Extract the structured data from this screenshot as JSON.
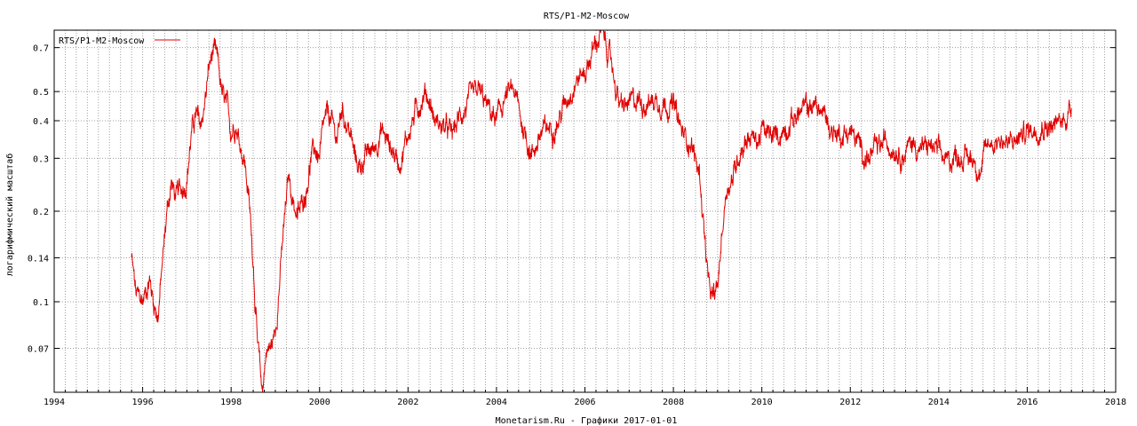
{
  "chart_data": {
    "type": "line",
    "title": "RTS/P1-M2-Moscow",
    "xlabel": "Monetarism.Ru - Графики  2017-01-01",
    "ylabel": "логарифмический масштаб",
    "y_scale": "log",
    "xlim": [
      1994,
      2018
    ],
    "ylim": [
      0.05,
      0.8
    ],
    "x_ticks": [
      "1994",
      "1996",
      "1998",
      "2000",
      "2002",
      "2004",
      "2006",
      "2008",
      "2010",
      "2012",
      "2014",
      "2016",
      "2018"
    ],
    "y_ticks": [
      "0.07",
      "0.1",
      "0.14",
      "0.2",
      "0.3",
      "0.4",
      "0.5",
      "0.7"
    ],
    "grid": true,
    "legend": {
      "position": "top-left",
      "entries": [
        "RTS/P1-M2-Moscow"
      ]
    },
    "series": [
      {
        "name": "RTS/P1-M2-Moscow",
        "color": "#e00000",
        "x": [
          1995.75,
          1995.85,
          1996.0,
          1996.15,
          1996.25,
          1996.35,
          1996.45,
          1996.55,
          1996.65,
          1996.75,
          1996.9,
          1997.0,
          1997.1,
          1997.2,
          1997.3,
          1997.4,
          1997.5,
          1997.6,
          1997.7,
          1997.8,
          1997.9,
          1998.0,
          1998.1,
          1998.2,
          1998.3,
          1998.4,
          1998.5,
          1998.6,
          1998.7,
          1998.8,
          1998.9,
          1999.0,
          1999.1,
          1999.2,
          1999.3,
          1999.4,
          1999.5,
          1999.6,
          1999.7,
          1999.8,
          1999.9,
          2000.0,
          2000.1,
          2000.2,
          2000.3,
          2000.4,
          2000.5,
          2000.6,
          2000.7,
          2000.8,
          2000.9,
          2001.0,
          2001.2,
          2001.4,
          2001.6,
          2001.8,
          2002.0,
          2002.2,
          2002.4,
          2002.5,
          2002.6,
          2002.8,
          2003.0,
          2003.2,
          2003.4,
          2003.6,
          2003.8,
          2004.0,
          2004.2,
          2004.4,
          2004.6,
          2004.8,
          2005.0,
          2005.2,
          2005.4,
          2005.6,
          2005.8,
          2006.0,
          2006.2,
          2006.35,
          2006.45,
          2006.6,
          2006.8,
          2007.0,
          2007.2,
          2007.4,
          2007.6,
          2007.8,
          2008.0,
          2008.2,
          2008.4,
          2008.6,
          2008.7,
          2008.8,
          2008.9,
          2009.0,
          2009.1,
          2009.2,
          2009.35,
          2009.5,
          2009.7,
          2009.9,
          2010.0,
          2010.2,
          2010.4,
          2010.6,
          2010.8,
          2011.0,
          2011.2,
          2011.4,
          2011.6,
          2011.8,
          2012.0,
          2012.2,
          2012.4,
          2012.6,
          2012.8,
          2013.0,
          2013.2,
          2013.4,
          2013.6,
          2013.8,
          2014.0,
          2014.2,
          2014.4,
          2014.6,
          2014.8,
          2014.95,
          2015.1,
          2015.2,
          2015.4,
          2015.6,
          2015.8,
          2016.0,
          2016.2,
          2016.4,
          2016.6,
          2016.8,
          2017.0
        ],
        "values": [
          0.14,
          0.105,
          0.1,
          0.12,
          0.1,
          0.09,
          0.135,
          0.2,
          0.25,
          0.22,
          0.24,
          0.26,
          0.36,
          0.42,
          0.38,
          0.45,
          0.6,
          0.68,
          0.62,
          0.48,
          0.44,
          0.37,
          0.4,
          0.34,
          0.3,
          0.22,
          0.14,
          0.07,
          0.05,
          0.07,
          0.07,
          0.08,
          0.12,
          0.18,
          0.26,
          0.22,
          0.19,
          0.21,
          0.24,
          0.3,
          0.32,
          0.3,
          0.38,
          0.42,
          0.38,
          0.35,
          0.44,
          0.4,
          0.36,
          0.3,
          0.28,
          0.3,
          0.32,
          0.37,
          0.33,
          0.29,
          0.36,
          0.44,
          0.5,
          0.46,
          0.4,
          0.38,
          0.36,
          0.42,
          0.46,
          0.5,
          0.44,
          0.4,
          0.48,
          0.5,
          0.38,
          0.31,
          0.36,
          0.38,
          0.4,
          0.48,
          0.55,
          0.58,
          0.7,
          0.78,
          0.74,
          0.62,
          0.44,
          0.45,
          0.47,
          0.46,
          0.47,
          0.46,
          0.45,
          0.36,
          0.34,
          0.26,
          0.17,
          0.11,
          0.1,
          0.11,
          0.17,
          0.24,
          0.26,
          0.32,
          0.36,
          0.34,
          0.37,
          0.35,
          0.36,
          0.39,
          0.42,
          0.44,
          0.45,
          0.42,
          0.37,
          0.36,
          0.37,
          0.33,
          0.3,
          0.32,
          0.34,
          0.33,
          0.31,
          0.34,
          0.32,
          0.33,
          0.31,
          0.29,
          0.31,
          0.3,
          0.3,
          0.27,
          0.33,
          0.34,
          0.35,
          0.33,
          0.35,
          0.37,
          0.38,
          0.39,
          0.38,
          0.4,
          0.44
        ]
      }
    ]
  }
}
